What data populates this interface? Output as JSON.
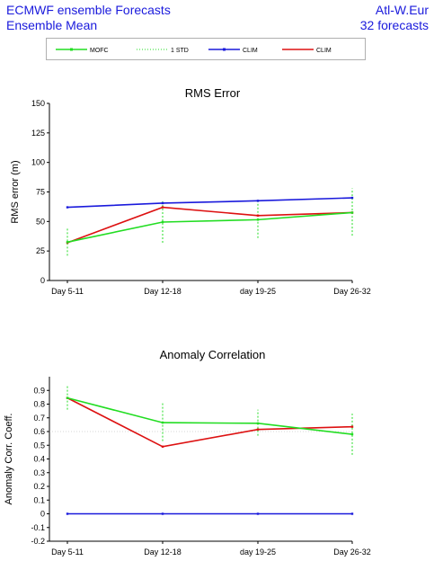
{
  "header": {
    "title_line1": "ECMWF ensemble Forecasts",
    "title_line2": "Ensemble Mean",
    "region": "Atl-W.Eur",
    "forecasts": "32 forecasts"
  },
  "legend": {
    "items": [
      {
        "label": "MOFC",
        "color": "#22dd22",
        "style": "solid-marker"
      },
      {
        "label": "1 STD",
        "color": "#22dd22",
        "style": "dotted"
      },
      {
        "label": "CLIM",
        "color": "#1a1adc",
        "style": "solid-marker"
      },
      {
        "label": "CLIM",
        "color": "#dd1111",
        "style": "solid"
      }
    ]
  },
  "chart_data": [
    {
      "type": "line",
      "title": "RMS Error",
      "ylabel": "RMS error (m)",
      "categories": [
        "Day 5-11",
        "Day 12-18",
        "day 19-25",
        "Day 26-32"
      ],
      "ylim": [
        0,
        150
      ],
      "yticks": [
        0,
        25,
        50,
        75,
        100,
        125,
        150
      ],
      "yticklabels": [
        "0",
        "25",
        "50",
        "75",
        "100",
        "125",
        "150"
      ],
      "series": [
        {
          "color": "#1a1adc",
          "values": [
            62,
            65.5,
            67.5,
            70
          ]
        },
        {
          "color": "#dd1111",
          "values": [
            32,
            62,
            55,
            57.5
          ]
        },
        {
          "color": "#22dd22",
          "values": [
            32.5,
            49.5,
            51.5,
            57.5
          ]
        }
      ],
      "error_bars": {
        "color": "#22dd22",
        "low": [
          21,
          32,
          36,
          38
        ],
        "high": [
          44,
          68,
          68,
          78
        ]
      }
    },
    {
      "type": "line",
      "title": "Anomaly Correlation",
      "ylabel": "Anomaly Corr. Coeff.",
      "categories": [
        "Day 5-11",
        "Day 12-18",
        "day 19-25",
        "Day 26-32"
      ],
      "ylim": [
        -0.2,
        1.0
      ],
      "yticks": [
        -0.2,
        -0.1,
        0,
        0.1,
        0.2,
        0.3,
        0.4,
        0.5,
        0.6,
        0.7,
        0.8,
        0.9
      ],
      "yticklabels": [
        "-0.2",
        "-0.1",
        "0",
        "0.1",
        "0.2",
        "0.3",
        "0.4",
        "0.5",
        "0.6",
        "0.7",
        "0.8",
        "0.9"
      ],
      "reference_line": 0.6,
      "series": [
        {
          "color": "#1a1adc",
          "values": [
            0,
            0,
            0,
            0
          ]
        },
        {
          "color": "#dd1111",
          "values": [
            0.845,
            0.49,
            0.615,
            0.635
          ]
        },
        {
          "color": "#22dd22",
          "values": [
            0.845,
            0.665,
            0.66,
            0.58
          ]
        }
      ],
      "error_bars": {
        "color": "#22dd22",
        "low": [
          0.76,
          0.53,
          0.57,
          0.43
        ],
        "high": [
          0.93,
          0.81,
          0.76,
          0.73
        ]
      }
    }
  ]
}
